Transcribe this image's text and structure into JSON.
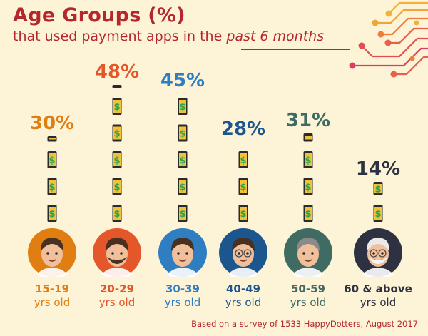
{
  "header": {
    "title": "Age Groups (%)",
    "subtitle_prefix": "that used payment apps in the",
    "subtitle_emphasis": "past 6 months"
  },
  "footnote": "Based on a survey of 1533 HappyDotters, August 2017",
  "chart_data": {
    "type": "bar",
    "title": "Age Groups (%)",
    "categories": [
      "15-19 yrs old",
      "20-29 yrs old",
      "30-39 yrs old",
      "40-49 yrs old",
      "50-59 yrs old",
      "60 & above yrs old"
    ],
    "category_lines": [
      [
        "15-19",
        "yrs old"
      ],
      [
        "20-29",
        "yrs old"
      ],
      [
        "30-39",
        "yrs old"
      ],
      [
        "40-49",
        "yrs old"
      ],
      [
        "50-59",
        "yrs old"
      ],
      [
        "60 & above",
        "yrs old"
      ]
    ],
    "values": [
      30,
      48,
      45,
      28,
      31,
      14
    ],
    "value_labels": [
      "30%",
      "48%",
      "45%",
      "28%",
      "31%",
      "14%"
    ],
    "colors": [
      "#e07e12",
      "#e4572a",
      "#2f7ec1",
      "#1b568f",
      "#3f6b63",
      "#2d3142"
    ],
    "avatar_colors": [
      "#e07e12",
      "#e4572a",
      "#2f7ec1",
      "#1b568f",
      "#3f6b63",
      "#2d3142"
    ],
    "icon": "phone-dollar-icon",
    "bar_style": "stacked phone icons"
  }
}
